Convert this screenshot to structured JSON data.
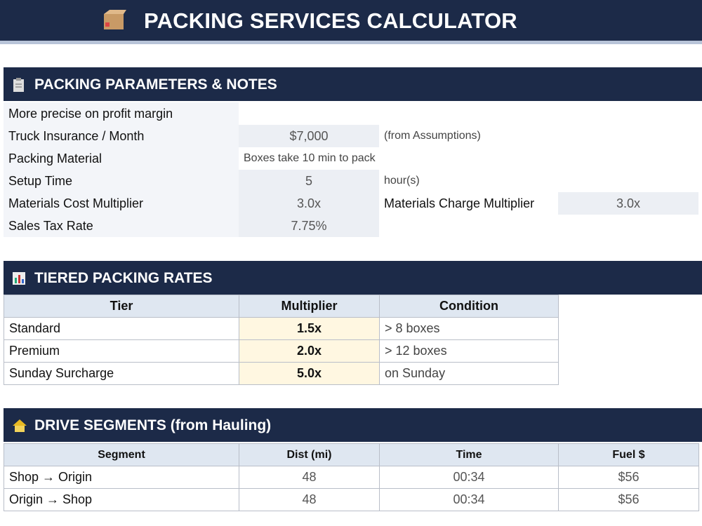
{
  "header": {
    "title": "PACKING SERVICES CALCULATOR"
  },
  "parameters": {
    "title": "PACKING PARAMETERS & NOTES",
    "rows": [
      [
        "More precise on profit margin"
      ],
      [
        "Truck Insurance / Month",
        "$7,000",
        "(from Assumptions)"
      ],
      [
        "Packing Material",
        "Boxes take 10 min to pack"
      ],
      [
        "Setup Time",
        "5",
        "hour(s)"
      ],
      [
        "Materials Cost Multiplier",
        "3.0x",
        "Materials Charge Multiplier",
        "3.0x"
      ],
      [
        "Sales Tax Rate",
        "7.75%"
      ]
    ]
  },
  "tiers": {
    "title": "TIERED PACKING RATES",
    "columns": [
      "Tier",
      "Multiplier",
      "Condition"
    ],
    "rows": [
      [
        "Standard",
        "1.5x",
        "> 8 boxes"
      ],
      [
        "Premium",
        "2.0x",
        "> 12 boxes"
      ],
      [
        "Sunday Surcharge",
        "5.0x",
        "on Sunday"
      ]
    ]
  },
  "drive": {
    "title": "DRIVE SEGMENTS (from Hauling)",
    "columns": [
      "Segment",
      "Dist (mi)",
      "Time",
      "Fuel $"
    ],
    "rows": [
      [
        "Shop → Origin",
        "48",
        "00:34",
        "$56"
      ],
      [
        "Origin → Shop",
        "48",
        "00:34",
        "$56"
      ]
    ]
  }
}
